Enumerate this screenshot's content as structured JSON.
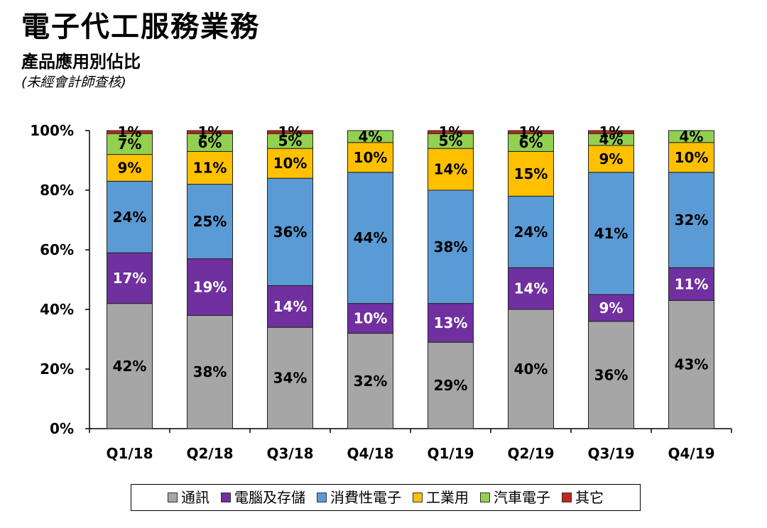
{
  "header": {
    "title": "電子代工服務業務",
    "subtitle": "產品應用別佔比",
    "note": "(未經會計師查核)"
  },
  "chart_data": {
    "type": "bar",
    "stacked": true,
    "categories": [
      "Q1/18",
      "Q2/18",
      "Q3/18",
      "Q4/18",
      "Q1/19",
      "Q2/19",
      "Q3/19",
      "Q4/19"
    ],
    "series": [
      {
        "name": "通訊",
        "color": "#a6a6a6",
        "label_color": "#000000",
        "values": [
          42,
          38,
          34,
          32,
          29,
          40,
          36,
          43
        ]
      },
      {
        "name": "電腦及存儲",
        "color": "#7030a0",
        "label_color": "#ffffff",
        "values": [
          17,
          19,
          14,
          10,
          13,
          14,
          9,
          11
        ]
      },
      {
        "name": "消費性電子",
        "color": "#5b9bd5",
        "label_color": "#000000",
        "values": [
          24,
          25,
          36,
          44,
          38,
          24,
          41,
          32
        ]
      },
      {
        "name": "工業用",
        "color": "#ffc000",
        "label_color": "#000000",
        "values": [
          9,
          11,
          10,
          10,
          14,
          15,
          9,
          10
        ]
      },
      {
        "name": "汽車電子",
        "color": "#92d050",
        "label_color": "#000000",
        "values": [
          7,
          6,
          5,
          4,
          5,
          6,
          4,
          4
        ]
      },
      {
        "name": "其它",
        "color": "#c0281c",
        "label_color": "#000000",
        "values": [
          1,
          1,
          1,
          0,
          1,
          1,
          1,
          0
        ]
      }
    ],
    "ylim": [
      0,
      100
    ],
    "yticks": [
      "0%",
      "20%",
      "40%",
      "60%",
      "80%",
      "100%"
    ],
    "legend_position": "bottom",
    "grid": false
  }
}
